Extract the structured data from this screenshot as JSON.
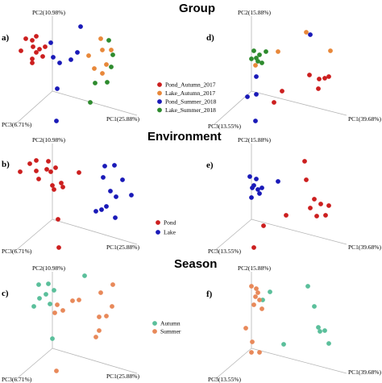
{
  "titles": {
    "group": "Group",
    "environment": "Environment",
    "season": "Season"
  },
  "legends": {
    "group": [
      {
        "label": "Pond_Autumn_2017",
        "color": "#cc1f1f"
      },
      {
        "label": "Lake_Autumn_2017",
        "color": "#e8883a"
      },
      {
        "label": "Pond_Summer_2018",
        "color": "#1a1ab8"
      },
      {
        "label": "Lake_Summer_2018",
        "color": "#2e8b2e"
      }
    ],
    "environment": [
      {
        "label": "Pond",
        "color": "#cc1f1f"
      },
      {
        "label": "Lake",
        "color": "#1a1ab8"
      }
    ],
    "season": [
      {
        "label": "Autumn",
        "color": "#5bbf9b"
      },
      {
        "label": "Summer",
        "color": "#e8895a"
      }
    ]
  },
  "chart_data": [
    {
      "panel_label": "a)",
      "type": "scatter",
      "axis_labels": {
        "pc1": "PC1(25.88%)",
        "pc2": "PC2(10.98%)",
        "pc3": "PC3(6.71%)"
      },
      "series": [
        {
          "name": "Pond_Autumn_2017",
          "color": "#cc1f1f",
          "points": [
            [
              26,
              63
            ],
            [
              32,
              48
            ],
            [
              40,
              50
            ],
            [
              41,
              58
            ],
            [
              45,
              45
            ],
            [
              49,
              61
            ],
            [
              45,
              65
            ],
            [
              56,
              58
            ],
            [
              40,
              73
            ],
            [
              40,
              78
            ],
            [
              53,
              70
            ]
          ]
        },
        {
          "name": "Lake_Autumn_2017",
          "color": "#e8883a",
          "points": [
            [
              125,
              48
            ],
            [
              127,
              62
            ],
            [
              110,
              69
            ],
            [
              117,
              85
            ],
            [
              127,
              91
            ],
            [
              132,
              80
            ],
            [
              138,
              62
            ]
          ]
        },
        {
          "name": "Pond_Summer_2018",
          "color": "#1a1ab8",
          "points": [
            [
              100,
              33
            ],
            [
              96,
              65
            ],
            [
              88,
              74
            ],
            [
              74,
              78
            ],
            [
              66,
              71
            ],
            [
              63,
              53
            ],
            [
              71,
              110
            ],
            [
              70,
              150
            ]
          ]
        },
        {
          "name": "Lake_Summer_2018",
          "color": "#2e8b2e",
          "points": [
            [
              135,
              50
            ],
            [
              140,
              68
            ],
            [
              138,
              83
            ],
            [
              133,
              102
            ],
            [
              118,
              103
            ],
            [
              112,
              127
            ]
          ]
        }
      ]
    },
    {
      "panel_label": "b)",
      "type": "scatter",
      "axis_labels": {
        "pc1": "PC1(25.88%)",
        "pc2": "PC2(10.98%)",
        "pc3": "PC3(6.71%)"
      },
      "series": [
        {
          "name": "Pond",
          "color": "#cc1f1f",
          "points": [
            [
              25,
              213
            ],
            [
              37,
              203
            ],
            [
              45,
              199
            ],
            [
              45,
              212
            ],
            [
              48,
              222
            ],
            [
              60,
              200
            ],
            [
              58,
              210
            ],
            [
              63,
              213
            ],
            [
              65,
              230
            ],
            [
              69,
              208
            ],
            [
              76,
              227
            ],
            [
              98,
              214
            ],
            [
              78,
              232
            ],
            [
              67,
              235
            ],
            [
              72,
              272
            ],
            [
              73,
              307
            ]
          ]
        },
        {
          "name": "Lake",
          "color": "#1a1ab8",
          "points": [
            [
              130,
              206
            ],
            [
              142,
              205
            ],
            [
              152,
              223
            ],
            [
              128,
              220
            ],
            [
              137,
              237
            ],
            [
              144,
              244
            ],
            [
              163,
              242
            ],
            [
              132,
              256
            ],
            [
              126,
              260
            ],
            [
              119,
              262
            ],
            [
              143,
              270
            ]
          ]
        }
      ]
    },
    {
      "panel_label": "c)",
      "type": "scatter",
      "axis_labels": {
        "pc1": "PC1(25.88%)",
        "pc2": "PC2(10.98%)",
        "pc3": "PC3(6.71%)"
      },
      "series": [
        {
          "name": "Autumn",
          "color": "#5bbf9b",
          "points": [
            [
              48,
              353
            ],
            [
              60,
              352
            ],
            [
              67,
              360
            ],
            [
              57,
              365
            ],
            [
              49,
              370
            ],
            [
              42,
              380
            ],
            [
              62,
              377
            ],
            [
              105,
              342
            ],
            [
              65,
              420
            ]
          ]
        },
        {
          "name": "Summer",
          "color": "#e8895a",
          "points": [
            [
              71,
              378
            ],
            [
              68,
              388
            ],
            [
              78,
              385
            ],
            [
              90,
              373
            ],
            [
              98,
              372
            ],
            [
              125,
              363
            ],
            [
              140,
              353
            ],
            [
              139,
              380
            ],
            [
              123,
              393
            ],
            [
              132,
              392
            ],
            [
              123,
              410
            ],
            [
              119,
              418
            ],
            [
              70,
              460
            ]
          ]
        }
      ]
    },
    {
      "panel_label": "d)",
      "type": "scatter",
      "axis_labels": {
        "pc1": "PC1(39.68%)",
        "pc2": "PC2(15.88%)",
        "pc3": "PC3(13.55%)"
      },
      "series": [
        {
          "name": "Pond_Autumn_2017",
          "color": "#cc1f1f",
          "points": [
            [
              350,
              113
            ],
            [
              384,
              93
            ],
            [
              396,
              98
            ],
            [
              403,
              97
            ],
            [
              408,
              95
            ],
            [
              395,
              110
            ],
            [
              340,
              127
            ]
          ]
        },
        {
          "name": "Lake_Autumn_2017",
          "color": "#e8883a",
          "points": [
            [
              345,
              64
            ],
            [
              380,
              40
            ],
            [
              410,
              63
            ],
            [
              317,
              81
            ]
          ]
        },
        {
          "name": "Pond_Summer_2018",
          "color": "#1a1ab8",
          "points": [
            [
              385,
              43
            ],
            [
              318,
              95
            ],
            [
              307,
              120
            ],
            [
              318,
              117
            ],
            [
              317,
              150
            ]
          ]
        },
        {
          "name": "Lake_Summer_2018",
          "color": "#2e8b2e",
          "points": [
            [
              315,
              63
            ],
            [
              322,
              68
            ],
            [
              318,
              72
            ],
            [
              312,
              73
            ],
            [
              320,
              76
            ],
            [
              330,
              64
            ],
            [
              325,
              78
            ]
          ]
        }
      ]
    },
    {
      "panel_label": "e)",
      "type": "scatter",
      "axis_labels": {
        "pc1": "PC1(39.68%)",
        "pc2": "PC2(15.88%)",
        "pc3": "PC3(13.55%)"
      },
      "series": [
        {
          "name": "Pond",
          "color": "#cc1f1f",
          "points": [
            [
              378,
              200
            ],
            [
              380,
              223
            ],
            [
              390,
              247
            ],
            [
              398,
              253
            ],
            [
              408,
              255
            ],
            [
              404,
              267
            ],
            [
              393,
              268
            ],
            [
              385,
              258
            ],
            [
              355,
              267
            ],
            [
              327,
              280
            ],
            [
              315,
              307
            ]
          ]
        },
        {
          "name": "Lake",
          "color": "#1a1ab8",
          "points": [
            [
              310,
              219
            ],
            [
              318,
              222
            ],
            [
              315,
              230
            ],
            [
              320,
              235
            ],
            [
              325,
              233
            ],
            [
              322,
              240
            ],
            [
              313,
              233
            ],
            [
              345,
              225
            ],
            [
              312,
              245
            ]
          ]
        }
      ]
    },
    {
      "panel_label": "f)",
      "type": "scatter",
      "axis_labels": {
        "pc1": "PC1(39.68%)",
        "pc2": "PC2(15.88%)",
        "pc3": "PC3(13.55%)"
      },
      "series": [
        {
          "name": "Autumn",
          "color": "#5bbf9b",
          "points": [
            [
              382,
              355
            ],
            [
              335,
              362
            ],
            [
              326,
              372
            ],
            [
              390,
              380
            ],
            [
              395,
              406
            ],
            [
              403,
              410
            ],
            [
              397,
              411
            ],
            [
              408,
              426
            ],
            [
              352,
              427
            ]
          ]
        },
        {
          "name": "Summer",
          "color": "#e8895a",
          "points": [
            [
              312,
              355
            ],
            [
              318,
              358
            ],
            [
              320,
              363
            ],
            [
              317,
              368
            ],
            [
              322,
              372
            ],
            [
              315,
              378
            ],
            [
              325,
              383
            ],
            [
              305,
              407
            ],
            [
              313,
              424
            ],
            [
              322,
              437
            ],
            [
              312,
              437
            ]
          ]
        }
      ]
    }
  ]
}
